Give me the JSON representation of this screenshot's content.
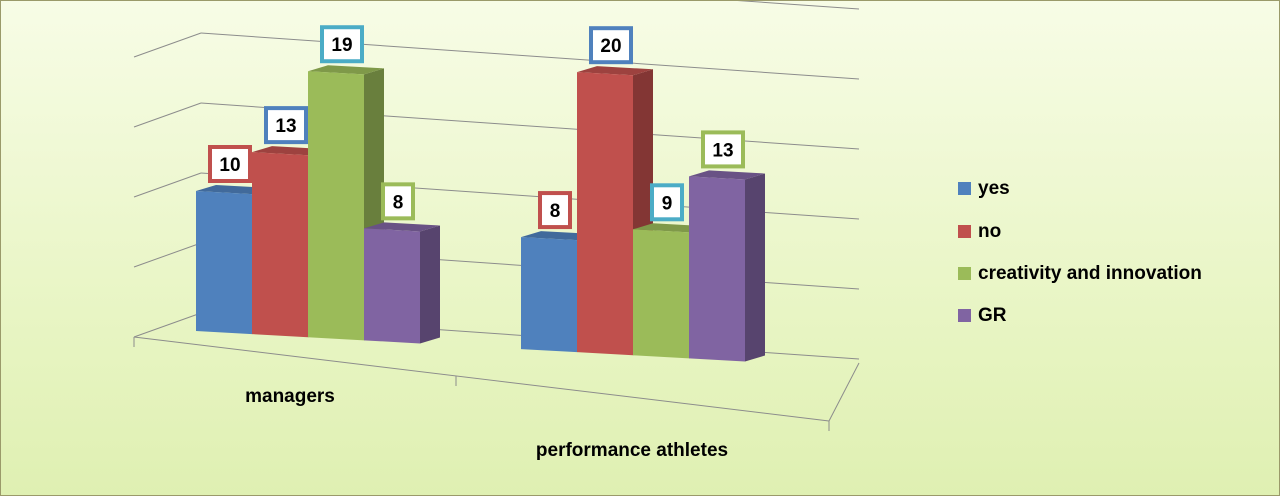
{
  "chart_data": {
    "type": "bar",
    "categories": [
      "managers",
      "performance athletes"
    ],
    "series": [
      {
        "name": "yes",
        "values": [
          10,
          8
        ],
        "color": "#4f81bd"
      },
      {
        "name": "no",
        "values": [
          13,
          20
        ],
        "color": "#c0504d"
      },
      {
        "name": "creativity and innovation",
        "values": [
          19,
          9
        ],
        "color": "#9bbb59"
      },
      {
        "name": "GR",
        "values": [
          8,
          13
        ],
        "color": "#8064a2"
      }
    ],
    "label_border_colors": [
      [
        "#c0504d",
        "#4f81bd",
        "#4bacc6",
        "#9bbb59"
      ],
      [
        "#c0504d",
        "#4f81bd",
        "#4bacc6",
        "#9bbb59"
      ]
    ],
    "ylim": [
      0,
      25
    ],
    "grid": true,
    "legend_position": "right",
    "style": "3d-clustered-column"
  }
}
